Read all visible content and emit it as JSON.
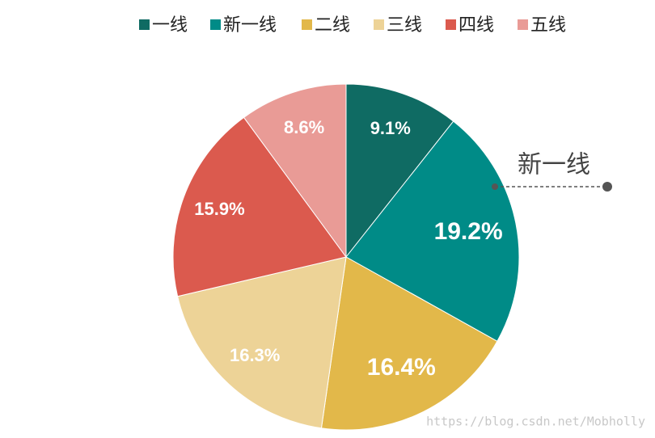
{
  "chart_data": {
    "type": "pie",
    "categories": [
      "一线",
      "新一线",
      "二线",
      "三线",
      "四线",
      "五线"
    ],
    "values": [
      9.1,
      19.2,
      16.4,
      16.3,
      15.9,
      8.6
    ],
    "value_labels": [
      "9.1%",
      "19.2%",
      "16.4%",
      "16.3%",
      "15.9%",
      "8.6%"
    ],
    "colors": [
      "#0f6b63",
      "#008b87",
      "#e2b84a",
      "#edd397",
      "#db5a4e",
      "#e99b96"
    ],
    "legend": "top",
    "annotation": "新一线",
    "watermark": "https://blog.csdn.net/Mobholly"
  }
}
